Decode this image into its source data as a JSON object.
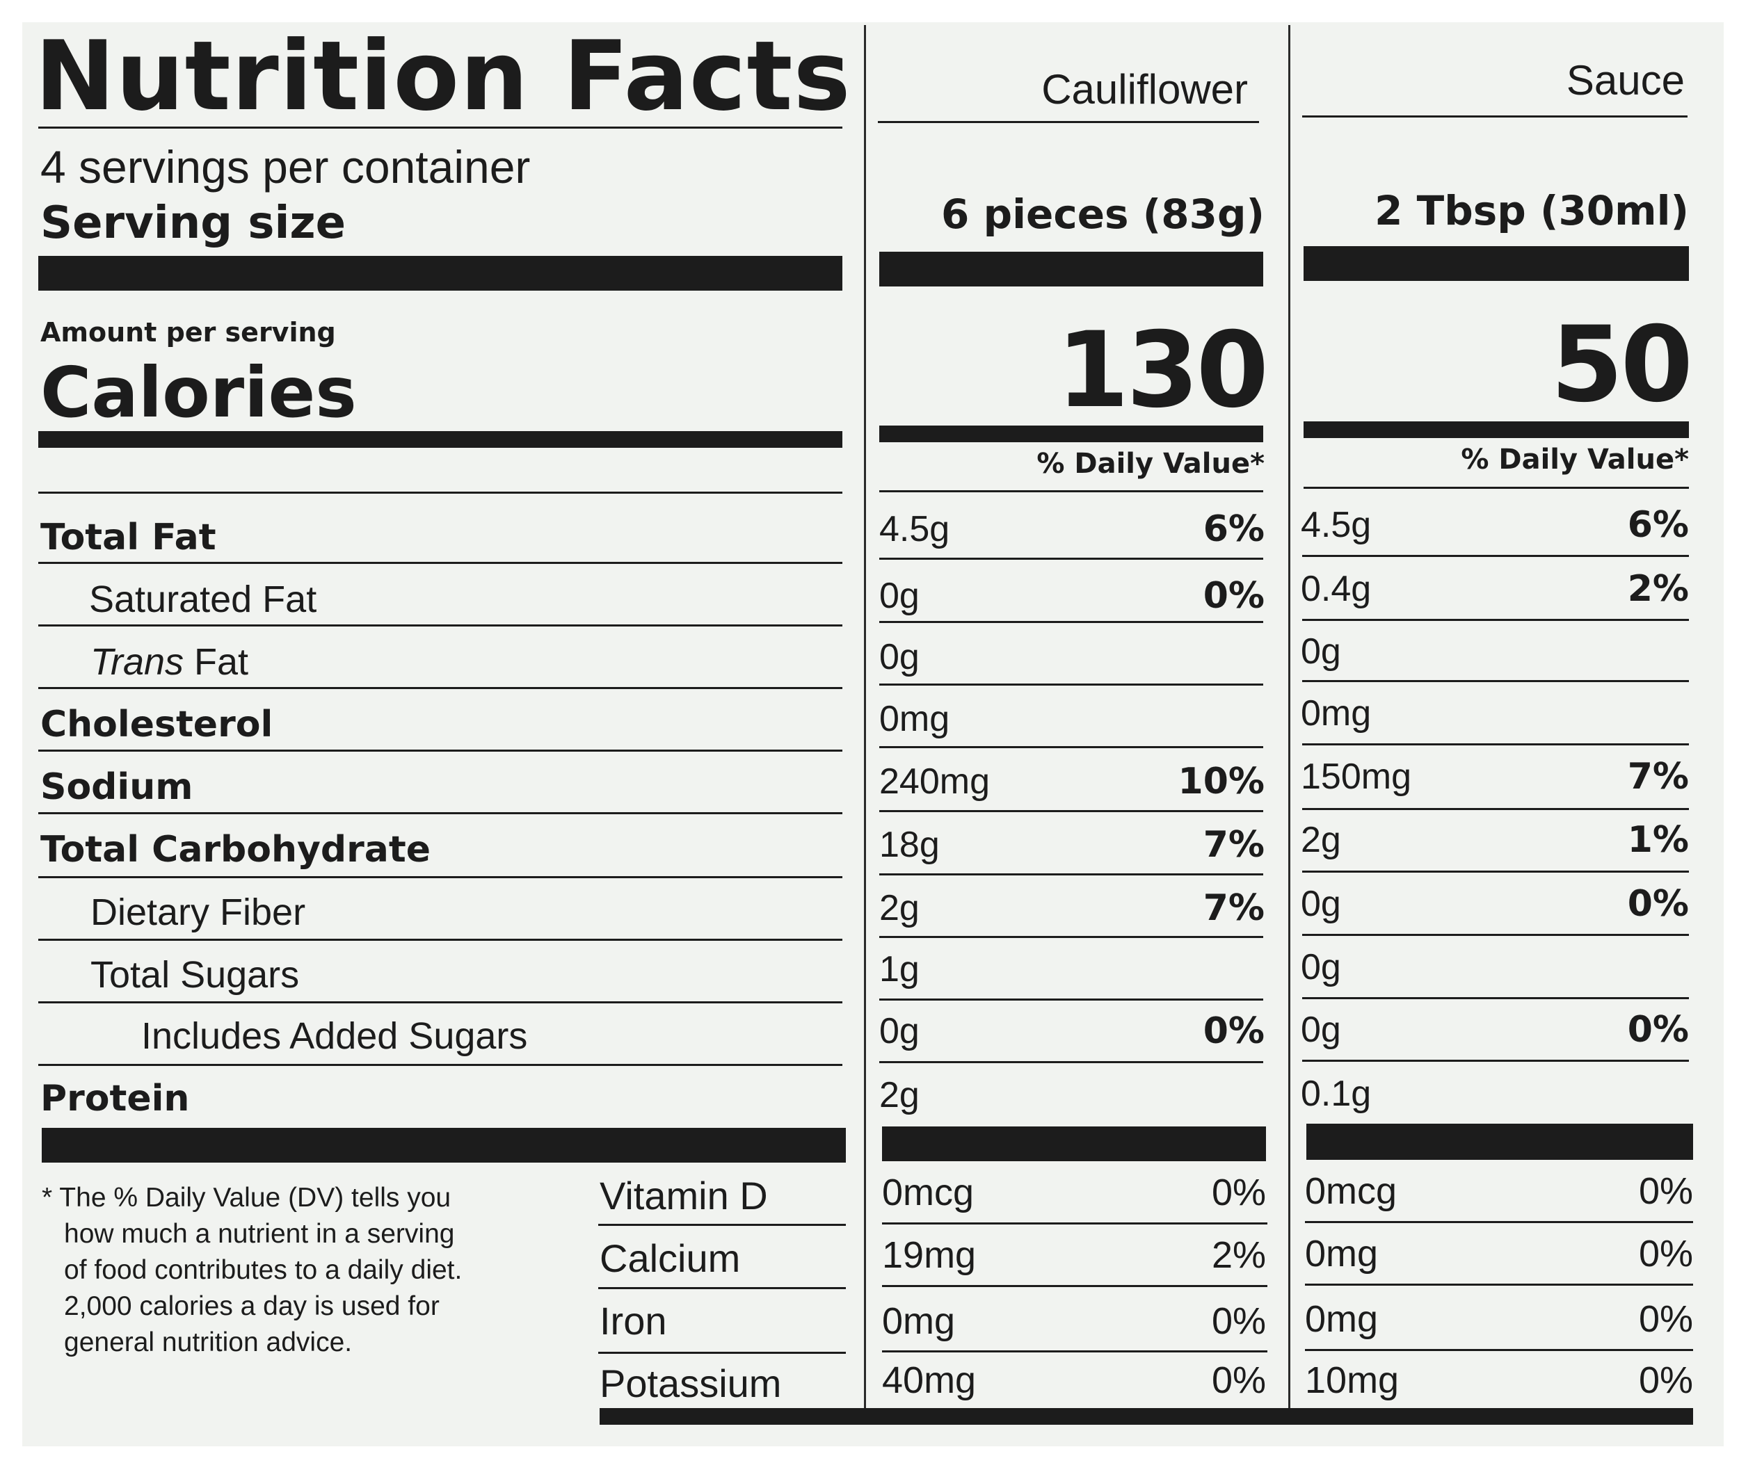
{
  "title": "Nutrition Facts",
  "servings_per_container": "4 servings per container",
  "serving_size_label": "Serving size",
  "amount_per_serving": "Amount per serving",
  "calories_label": "Calories",
  "nutrient_labels": {
    "total_fat": "Total Fat",
    "saturated_fat": "Saturated Fat",
    "trans_fat_italic": "Trans",
    "trans_fat_rest": " Fat",
    "cholesterol": "Cholesterol",
    "sodium": "Sodium",
    "total_carbohydrate": "Total Carbohydrate",
    "dietary_fiber": "Dietary Fiber",
    "total_sugars": "Total Sugars",
    "added_sugars": "Includes Added Sugars",
    "protein": "Protein"
  },
  "vitamin_labels": {
    "vitamin_d": "Vitamin D",
    "calcium": "Calcium",
    "iron": "Iron",
    "potassium": "Potassium"
  },
  "footnote": [
    "* The % Daily Value (DV) tells you",
    "how much a nutrient in a serving",
    "of food contributes to a daily diet.",
    "2,000 calories a day is used for",
    "general nutrition advice."
  ],
  "columns": [
    {
      "name": "Cauliflower",
      "serving_size": "6 pieces (83g)",
      "calories": "130",
      "dv_header": "% Daily Value*",
      "total_fat": {
        "amount": "4.5g",
        "dv": "6%"
      },
      "saturated_fat": {
        "amount": "0g",
        "dv": "0%"
      },
      "trans_fat": {
        "amount": "0g"
      },
      "cholesterol": {
        "amount": "0mg"
      },
      "sodium": {
        "amount": "240mg",
        "dv": "10%"
      },
      "total_carbohydrate": {
        "amount": "18g",
        "dv": "7%"
      },
      "dietary_fiber": {
        "amount": "2g",
        "dv": "7%"
      },
      "total_sugars": {
        "amount": "1g"
      },
      "added_sugars": {
        "amount": "0g",
        "dv": "0%"
      },
      "protein": {
        "amount": "2g"
      },
      "vitamin_d": {
        "amount": "0mcg",
        "dv": "0%"
      },
      "calcium": {
        "amount": "19mg",
        "dv": "2%"
      },
      "iron": {
        "amount": "0mg",
        "dv": "0%"
      },
      "potassium": {
        "amount": "40mg",
        "dv": "0%"
      }
    },
    {
      "name": "Sauce",
      "serving_size": "2 Tbsp (30ml)",
      "calories": "50",
      "dv_header": "% Daily Value*",
      "total_fat": {
        "amount": "4.5g",
        "dv": "6%"
      },
      "saturated_fat": {
        "amount": "0.4g",
        "dv": "2%"
      },
      "trans_fat": {
        "amount": "0g"
      },
      "cholesterol": {
        "amount": "0mg"
      },
      "sodium": {
        "amount": "150mg",
        "dv": "7%"
      },
      "total_carbohydrate": {
        "amount": "2g",
        "dv": "1%"
      },
      "dietary_fiber": {
        "amount": "0g",
        "dv": "0%"
      },
      "total_sugars": {
        "amount": "0g"
      },
      "added_sugars": {
        "amount": "0g",
        "dv": "0%"
      },
      "protein": {
        "amount": "0.1g"
      },
      "vitamin_d": {
        "amount": "0mcg",
        "dv": "0%"
      },
      "calcium": {
        "amount": "0mg",
        "dv": "0%"
      },
      "iron": {
        "amount": "0mg",
        "dv": "0%"
      },
      "potassium": {
        "amount": "10mg",
        "dv": "0%"
      }
    }
  ]
}
